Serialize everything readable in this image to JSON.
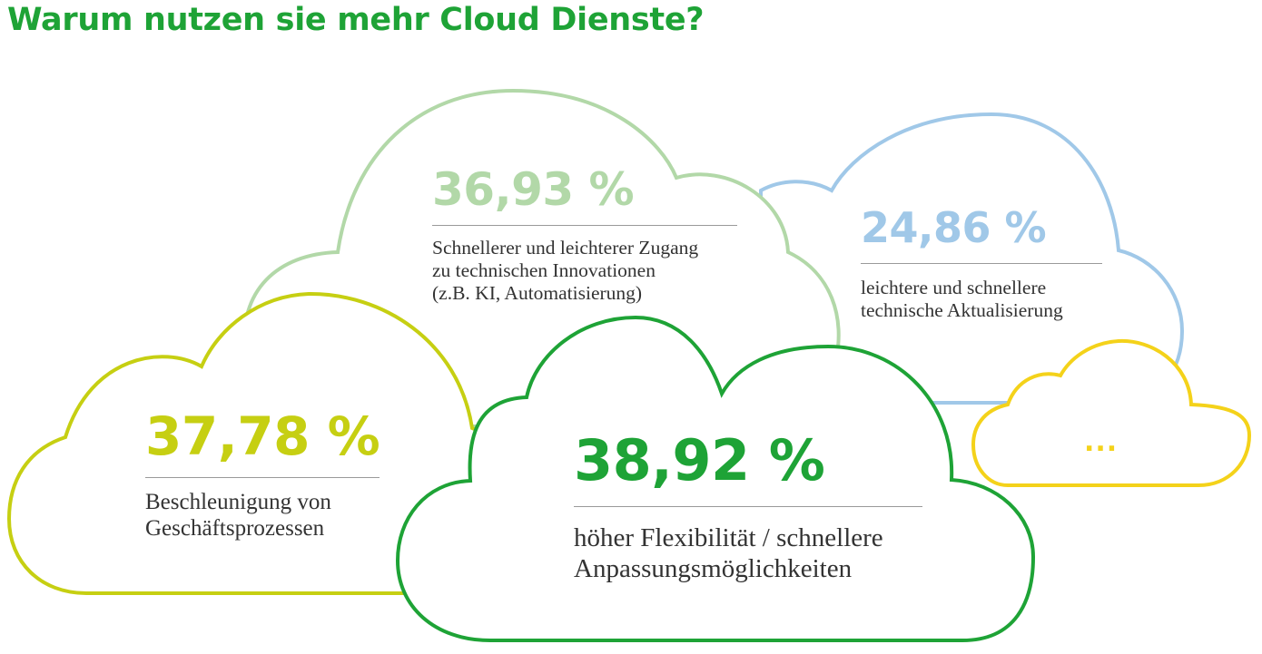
{
  "title": "Warum nutzen sie mehr Cloud Dienste?",
  "colors": {
    "title": "#1ea336",
    "light_green": "#b2d8a8",
    "light_blue": "#a0c8e8",
    "lime": "#c6cf12",
    "green": "#1ea336",
    "yellow": "#f4d21a",
    "text": "#333333"
  },
  "clouds": [
    {
      "percent": "36,93 %",
      "lines": [
        "Schnellerer und leichterer Zugang",
        "zu technischen Innovationen",
        "(z.B. KI, Automatisierung)"
      ]
    },
    {
      "percent": "24,86 %",
      "lines": [
        "leichtere und schnellere",
        "technische Aktualisierung"
      ]
    },
    {
      "percent": "37,78 %",
      "lines": [
        "Beschleunigung von",
        "Geschäftsprozessen"
      ]
    },
    {
      "percent": "38,92 %",
      "lines": [
        "höher Flexibilität / schnellere",
        "Anpassungsmöglichkeiten"
      ]
    },
    {
      "percent": "..."
    }
  ]
}
